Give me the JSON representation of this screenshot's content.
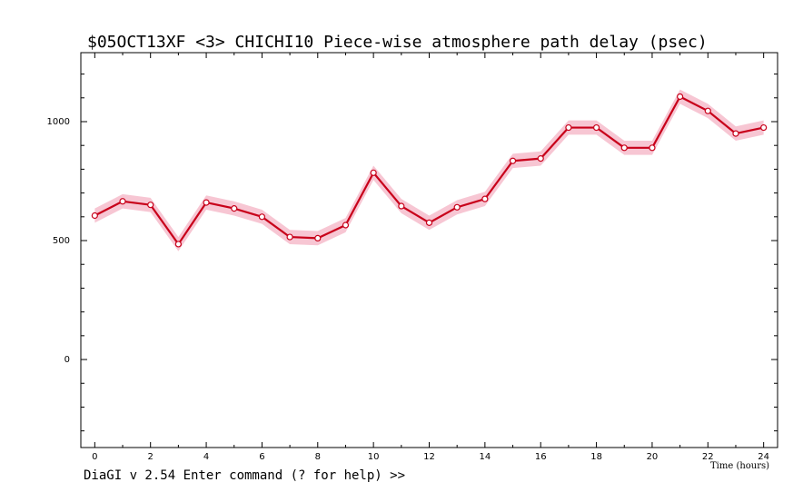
{
  "title": "$05OCT13XF <3>  CHICHI10  Piece-wise atmosphere path delay (psec)",
  "status_line": "DiaGI v 2.54  Enter command (? for help) >>",
  "colors": {
    "line": "#c8001a",
    "band": "#f7c6d3",
    "marker_fill": "#ffffff",
    "marker_stroke": "#c8001a",
    "axis": "#000000"
  },
  "chart_data": {
    "type": "line",
    "title": "$05OCT13XF <3>  CHICHI10  Piece-wise atmosphere path delay (psec)",
    "xlabel": "Time (hours)",
    "ylabel": "",
    "xlim": [
      -0.5,
      24.5
    ],
    "ylim": [
      -370,
      1290
    ],
    "x_ticks": [
      0,
      2,
      4,
      6,
      8,
      10,
      12,
      14,
      16,
      18,
      20,
      22,
      24
    ],
    "y_ticks": [
      0,
      500,
      1000
    ],
    "grid": false,
    "error_band": 30,
    "series": [
      {
        "x": [
          0,
          1,
          2,
          3,
          4,
          5,
          6,
          7,
          8,
          9,
          10,
          11,
          12,
          13,
          14,
          15,
          16,
          17,
          18,
          19,
          20,
          21,
          22,
          23,
          24
        ],
        "values": [
          605,
          665,
          650,
          485,
          660,
          635,
          600,
          515,
          510,
          565,
          785,
          645,
          575,
          640,
          675,
          835,
          845,
          975,
          975,
          890,
          890,
          1105,
          1045,
          950,
          975
        ]
      }
    ]
  }
}
